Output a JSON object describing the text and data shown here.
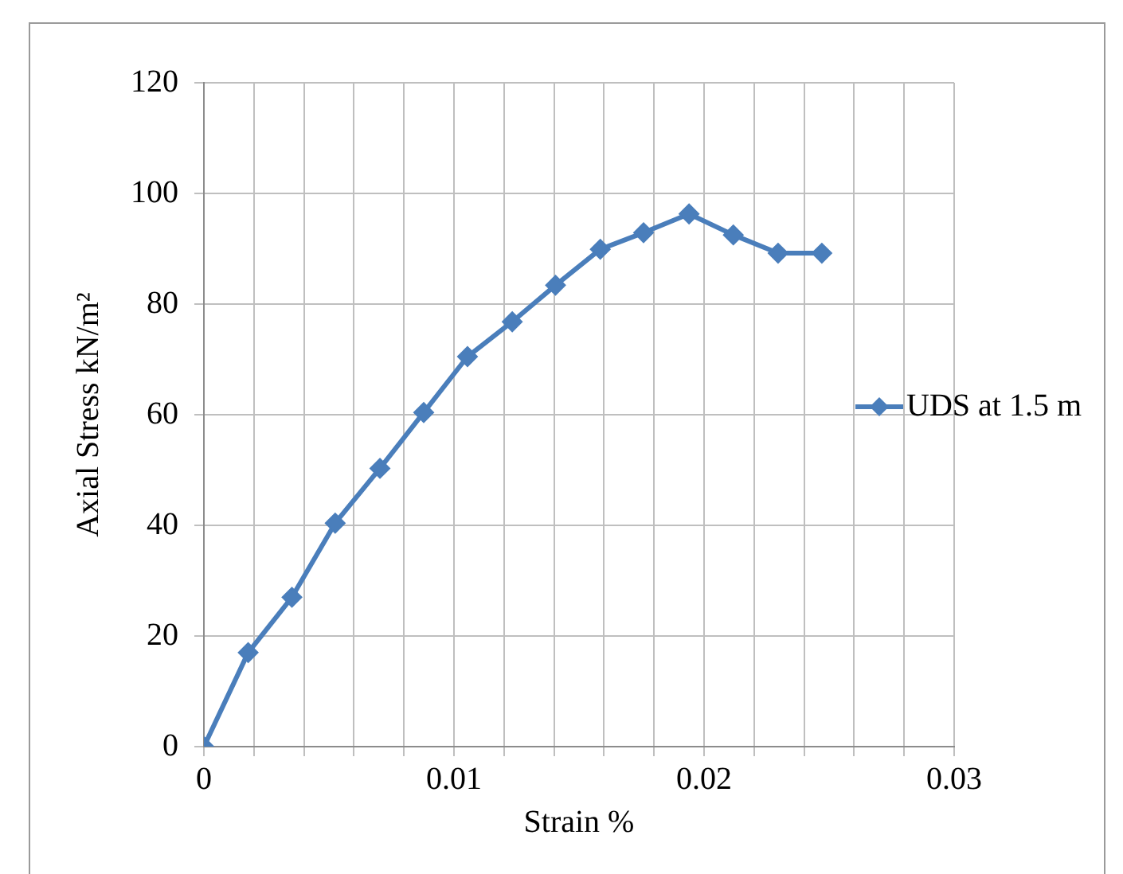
{
  "chart_data": {
    "type": "line",
    "xlabel": "Strain %",
    "ylabel": "Axial Stress kN/m²",
    "x": [
      0,
      0.00177,
      0.00352,
      0.00525,
      0.00704,
      0.00879,
      0.01054,
      0.01233,
      0.01406,
      0.01585,
      0.01758,
      0.0194,
      0.02117,
      0.02296,
      0.02471
    ],
    "series": [
      {
        "name": "UDS at 1.5 m",
        "color": "#4a7ebb",
        "values": [
          0,
          17,
          27,
          40.4,
          50.3,
          60.4,
          70.5,
          76.8,
          83.4,
          89.9,
          92.9,
          96.3,
          92.5,
          89.2,
          89.2
        ]
      }
    ],
    "xlim": [
      0,
      0.03
    ],
    "xticks": [
      0,
      {
        "value": 0.002,
        "label": null
      },
      {
        "value": 0.004,
        "label": null
      },
      {
        "value": 0.006,
        "label": null
      },
      {
        "value": 0.008,
        "label": null
      },
      {
        "value": 0.01,
        "label": "0.01"
      },
      {
        "value": 0.012,
        "label": null
      },
      {
        "value": 0.014,
        "label": null
      },
      {
        "value": 0.016,
        "label": null
      },
      {
        "value": 0.018,
        "label": null
      },
      {
        "value": 0.02,
        "label": "0.02"
      },
      {
        "value": 0.022,
        "label": null
      },
      {
        "value": 0.024,
        "label": null
      },
      {
        "value": 0.026,
        "label": null
      },
      {
        "value": 0.028,
        "label": null
      },
      {
        "value": 0.03,
        "label": "0.03"
      }
    ],
    "ylim": [
      0,
      120
    ],
    "yticks": [
      0,
      20,
      40,
      60,
      80,
      100,
      120
    ],
    "grid": true,
    "legend": "right",
    "marker": "diamond",
    "line_style": "solid"
  }
}
